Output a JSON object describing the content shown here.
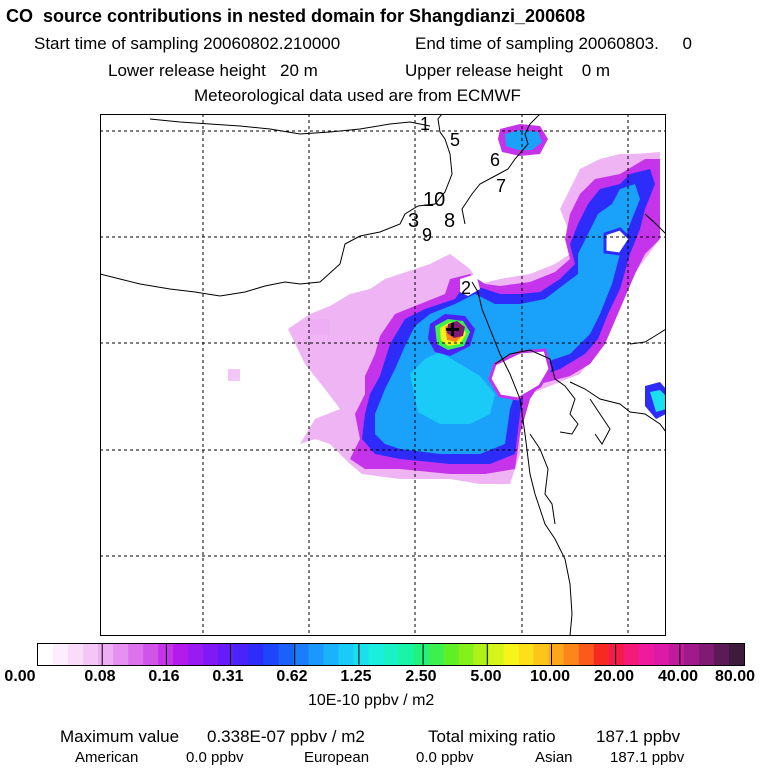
{
  "header": {
    "title": "CO  source contributions in nested domain for Shangdianzi_200608",
    "start_time": "Start time of sampling 20060802.210000",
    "end_time": "End time of sampling 20060803.     0",
    "lower_height": "Lower release height   20 m",
    "upper_height": "Upper release height    0 m",
    "met_data": "Meteorological data used are from ECMWF"
  },
  "map": {
    "release_numbers": [
      "1",
      "5",
      "6",
      "7",
      "10",
      "3",
      "8",
      "9",
      "2"
    ],
    "source_marker": "+"
  },
  "colorbar": {
    "ticks": [
      "0.00",
      "0.08",
      "0.16",
      "0.31",
      "0.62",
      "1.25",
      "2.50",
      "5.00",
      "10.00",
      "20.00",
      "40.00",
      "80.00"
    ],
    "unit": "10E-10 ppbv / m2",
    "colors": [
      "#ffffff",
      "#fdeefd",
      "#f9dbfa",
      "#f4c6f6",
      "#eeaef3",
      "#e691ef",
      "#dd73ec",
      "#d253ea",
      "#c534ea",
      "#b21aee",
      "#9a1af2",
      "#7f1af6",
      "#651cf8",
      "#4a22fa",
      "#2e2cfb",
      "#1f45fb",
      "#1a61fb",
      "#1a7dfb",
      "#1a98fb",
      "#1ab2fb",
      "#1acbf8",
      "#1ae0ee",
      "#1aeede",
      "#1af2c6",
      "#1af4a6",
      "#22f27c",
      "#3cf050",
      "#5eef26",
      "#86f01a",
      "#aef21a",
      "#d4f41a",
      "#f6f41a",
      "#fde01a",
      "#fdc41a",
      "#fda61a",
      "#fd861a",
      "#fb5a1a",
      "#f72a22",
      "#f41a4a",
      "#f41a7a",
      "#ee1aa0",
      "#dd1aa8",
      "#c21a9c",
      "#a2198a",
      "#801a72",
      "#5c1a56",
      "#3e1a3c"
    ]
  },
  "stats": {
    "max_label": "Maximum value",
    "max_value": "0.338E-07 ppbv / m2",
    "total_label": "Total mixing ratio",
    "total_value": "187.1 ppbv",
    "american_label": "American",
    "american_value": "0.0 ppbv",
    "european_label": "European",
    "european_value": "0.0 ppbv",
    "asian_label": "Asian",
    "asian_value": "187.1 ppbv"
  }
}
